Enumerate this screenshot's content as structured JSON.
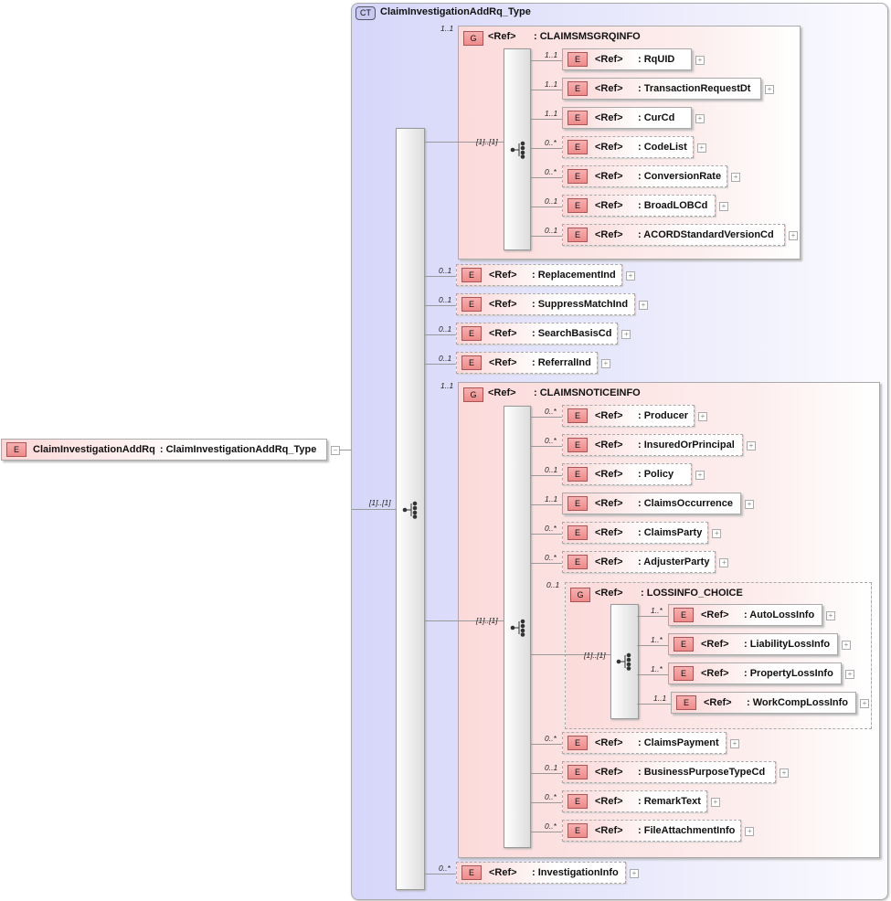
{
  "root": {
    "badge": "E",
    "name": "ClaimInvestigationAddRq",
    "type": ": ClaimInvestigationAddRq_Type"
  },
  "complex_type": {
    "badge": "CT",
    "name": "ClaimInvestigationAddRq_Type"
  },
  "main_sequence": {
    "cardinality": "[1]..[1]"
  },
  "ref_label": "<Ref>",
  "groups": [
    {
      "badge": "G",
      "name": ": CLAIMSMSGRQINFO",
      "cardinality": "1..1",
      "sequence_cardinality": "[1]..[1]"
    },
    {
      "badge": "G",
      "name": ": CLAIMSNOTICEINFO",
      "cardinality": "1..1",
      "sequence_cardinality": "[1]..[1]"
    },
    {
      "badge": "G",
      "name": ": LOSSINFO_CHOICE",
      "cardinality": "0..1",
      "choice_cardinality": "[1]..[1]"
    }
  ],
  "elements": [
    {
      "name": ": RqUID",
      "cardinality": "1..1",
      "optional": false
    },
    {
      "name": ": TransactionRequestDt",
      "cardinality": "1..1",
      "optional": false
    },
    {
      "name": ": CurCd",
      "cardinality": "1..1",
      "optional": false
    },
    {
      "name": ": CodeList",
      "cardinality": "0..*",
      "optional": true
    },
    {
      "name": ": ConversionRate",
      "cardinality": "0..*",
      "optional": true
    },
    {
      "name": ": BroadLOBCd",
      "cardinality": "0..1",
      "optional": true
    },
    {
      "name": ": ACORDStandardVersionCd",
      "cardinality": "0..1",
      "optional": true
    },
    {
      "name": ": ReplacementInd",
      "cardinality": "0..1",
      "optional": true
    },
    {
      "name": ": SuppressMatchInd",
      "cardinality": "0..1",
      "optional": true
    },
    {
      "name": ": SearchBasisCd",
      "cardinality": "0..1",
      "optional": true
    },
    {
      "name": ": ReferralInd",
      "cardinality": "0..1",
      "optional": true
    },
    {
      "name": ": Producer",
      "cardinality": "0..*",
      "optional": true
    },
    {
      "name": ": InsuredOrPrincipal",
      "cardinality": "0..*",
      "optional": true
    },
    {
      "name": ": Policy",
      "cardinality": "0..1",
      "optional": true
    },
    {
      "name": ": ClaimsOccurrence",
      "cardinality": "1..1",
      "optional": false
    },
    {
      "name": ": ClaimsParty",
      "cardinality": "0..*",
      "optional": true
    },
    {
      "name": ": AdjusterParty",
      "cardinality": "0..*",
      "optional": true
    },
    {
      "name": ": AutoLossInfo",
      "cardinality": "1..*",
      "optional": false
    },
    {
      "name": ": LiabilityLossInfo",
      "cardinality": "1..*",
      "optional": false
    },
    {
      "name": ": PropertyLossInfo",
      "cardinality": "1..*",
      "optional": false
    },
    {
      "name": ": WorkCompLossInfo",
      "cardinality": "1..1",
      "optional": false
    },
    {
      "name": ": ClaimsPayment",
      "cardinality": "0..*",
      "optional": true
    },
    {
      "name": ": BusinessPurposeTypeCd",
      "cardinality": "0..1",
      "optional": true
    },
    {
      "name": ": RemarkText",
      "cardinality": "0..*",
      "optional": true
    },
    {
      "name": ": FileAttachmentInfo",
      "cardinality": "0..*",
      "optional": true
    },
    {
      "name": ": InvestigationInfo",
      "cardinality": "0..*",
      "optional": true
    }
  ]
}
